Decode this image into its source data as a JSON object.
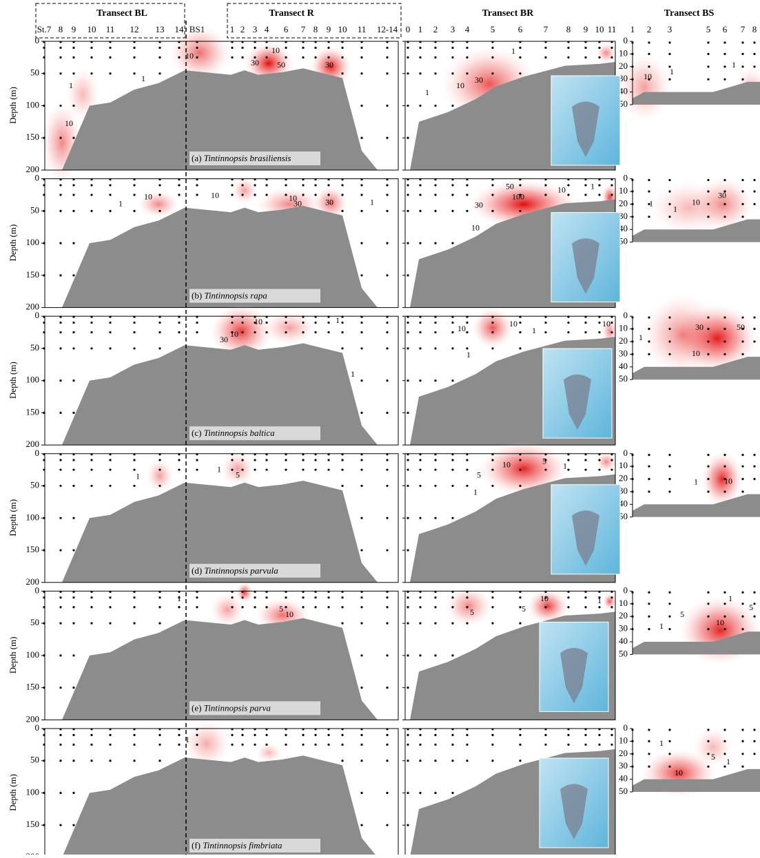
{
  "header": {
    "transects": [
      {
        "title": "Transect BL",
        "stations": [
          "St.7",
          "8",
          "9",
          "10",
          "11",
          "12",
          "13",
          "14"
        ]
      },
      {
        "title": "Transect R",
        "stations": [
          "1",
          "2",
          "3",
          "4",
          "6",
          "7",
          "8",
          "9",
          "10",
          "11",
          "12-14"
        ]
      },
      {
        "title": "Transect BR",
        "stations": [
          "0",
          "1",
          "2",
          "3",
          "4",
          "5",
          "6",
          "7",
          "8",
          "9",
          "10",
          "11"
        ]
      },
      {
        "title": "Transect BS",
        "stations": [
          "1",
          "2",
          "3",
          "5",
          "6",
          "7",
          "8"
        ]
      }
    ],
    "junction_station": "BS1"
  },
  "axes": {
    "depth_label": "Depth (m)",
    "depth_ticks": [
      0,
      50,
      100,
      150,
      200
    ],
    "bs_depth_ticks": [
      0,
      10,
      20,
      30,
      40,
      50
    ]
  },
  "panels": [
    {
      "letter": "(a)",
      "species": "Tintinnopsis brasiliensis",
      "contours": {
        "left": [
          "10",
          "1",
          "10",
          "1",
          "10",
          "30",
          "50",
          "30"
        ],
        "br": [
          "1",
          "10",
          "30",
          "1"
        ],
        "bs": [
          "10",
          "1",
          "1"
        ]
      }
    },
    {
      "letter": "(b)",
      "species": "Tintinnopsis rapa",
      "contours": {
        "left": [
          "1",
          "10",
          "10",
          "30",
          "10",
          "30",
          "1"
        ],
        "br": [
          "50",
          "100",
          "30",
          "10",
          "10",
          "1"
        ],
        "bs": [
          "1",
          "10",
          "30",
          "1"
        ]
      }
    },
    {
      "letter": "(c)",
      "species": "Tintinnopsis baltica",
      "contours": {
        "left": [
          "30",
          "10",
          "10",
          "1",
          "1"
        ],
        "br": [
          "10",
          "10",
          "1",
          "1",
          "10"
        ],
        "bs": [
          "30",
          "50",
          "10",
          "1"
        ]
      }
    },
    {
      "letter": "(d)",
      "species": "Tintinnopsis parvula",
      "contours": {
        "left": [
          "1",
          "1",
          "5"
        ],
        "br": [
          "10",
          "5",
          "1",
          "5",
          "1"
        ],
        "bs": [
          "10",
          "1"
        ]
      }
    },
    {
      "letter": "(e)",
      "species": "Tintinnopsis parva",
      "contours": {
        "left": [
          "5",
          "10",
          "1"
        ],
        "br": [
          "5",
          "5",
          "10",
          "1"
        ],
        "bs": [
          "1",
          "5",
          "5",
          "10",
          "1"
        ]
      }
    },
    {
      "letter": "(f)",
      "species": "Tintinnopsis fimbriata",
      "contours": {
        "left": [
          "1"
        ],
        "br": [],
        "bs": [
          "1",
          "10",
          "5",
          "1"
        ]
      }
    }
  ]
}
